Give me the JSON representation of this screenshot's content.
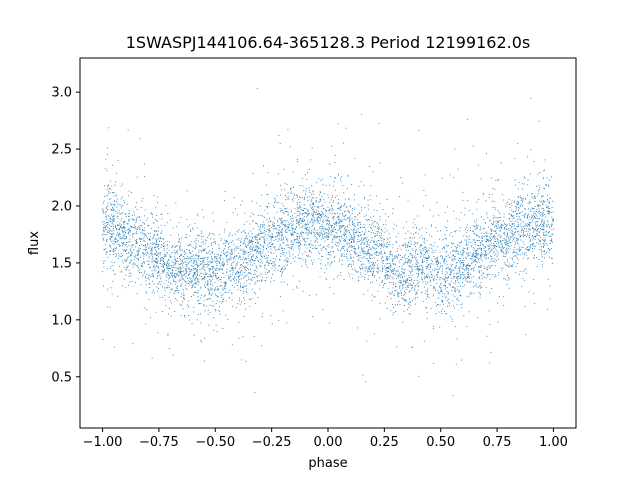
{
  "chart_data": {
    "type": "scatter",
    "title": "1SWASPJ144106.64-365128.3 Period 12199162.0s",
    "xlabel": "phase",
    "ylabel": "flux",
    "xlim": [
      -1.1,
      1.1
    ],
    "ylim": [
      0.05,
      3.3
    ],
    "x_ticks": [
      -1.0,
      -0.75,
      -0.5,
      -0.25,
      0.0,
      0.25,
      0.5,
      0.75,
      1.0
    ],
    "x_tick_labels": [
      "−1.00",
      "−0.75",
      "−0.50",
      "−0.25",
      "0.00",
      "0.25",
      "0.50",
      "0.75",
      "1.00"
    ],
    "y_ticks": [
      0.5,
      1.0,
      1.5,
      2.0,
      2.5,
      3.0
    ],
    "y_tick_labels": [
      "0.5",
      "1.0",
      "1.5",
      "2.0",
      "2.5",
      "3.0"
    ],
    "grid": false,
    "legend": "none",
    "point_color": "#1f77b4",
    "phase_range": [
      -1.0,
      1.0
    ],
    "flux_range": [
      0.2,
      3.15
    ],
    "light_curve_profile": {
      "description_values_phase": [
        0.0,
        0.05,
        0.1,
        0.15,
        0.2,
        0.25,
        0.3,
        0.35,
        0.4,
        0.45,
        0.5,
        0.55,
        0.6,
        0.65,
        0.7,
        0.75,
        0.8,
        0.85,
        0.9,
        0.95,
        1.0
      ],
      "median_flux": [
        1.85,
        1.8,
        1.72,
        1.68,
        1.62,
        1.58,
        1.4,
        1.45,
        1.5,
        1.45,
        1.4,
        1.45,
        1.5,
        1.55,
        1.62,
        1.7,
        1.75,
        1.78,
        1.82,
        1.85,
        1.85
      ]
    }
  }
}
